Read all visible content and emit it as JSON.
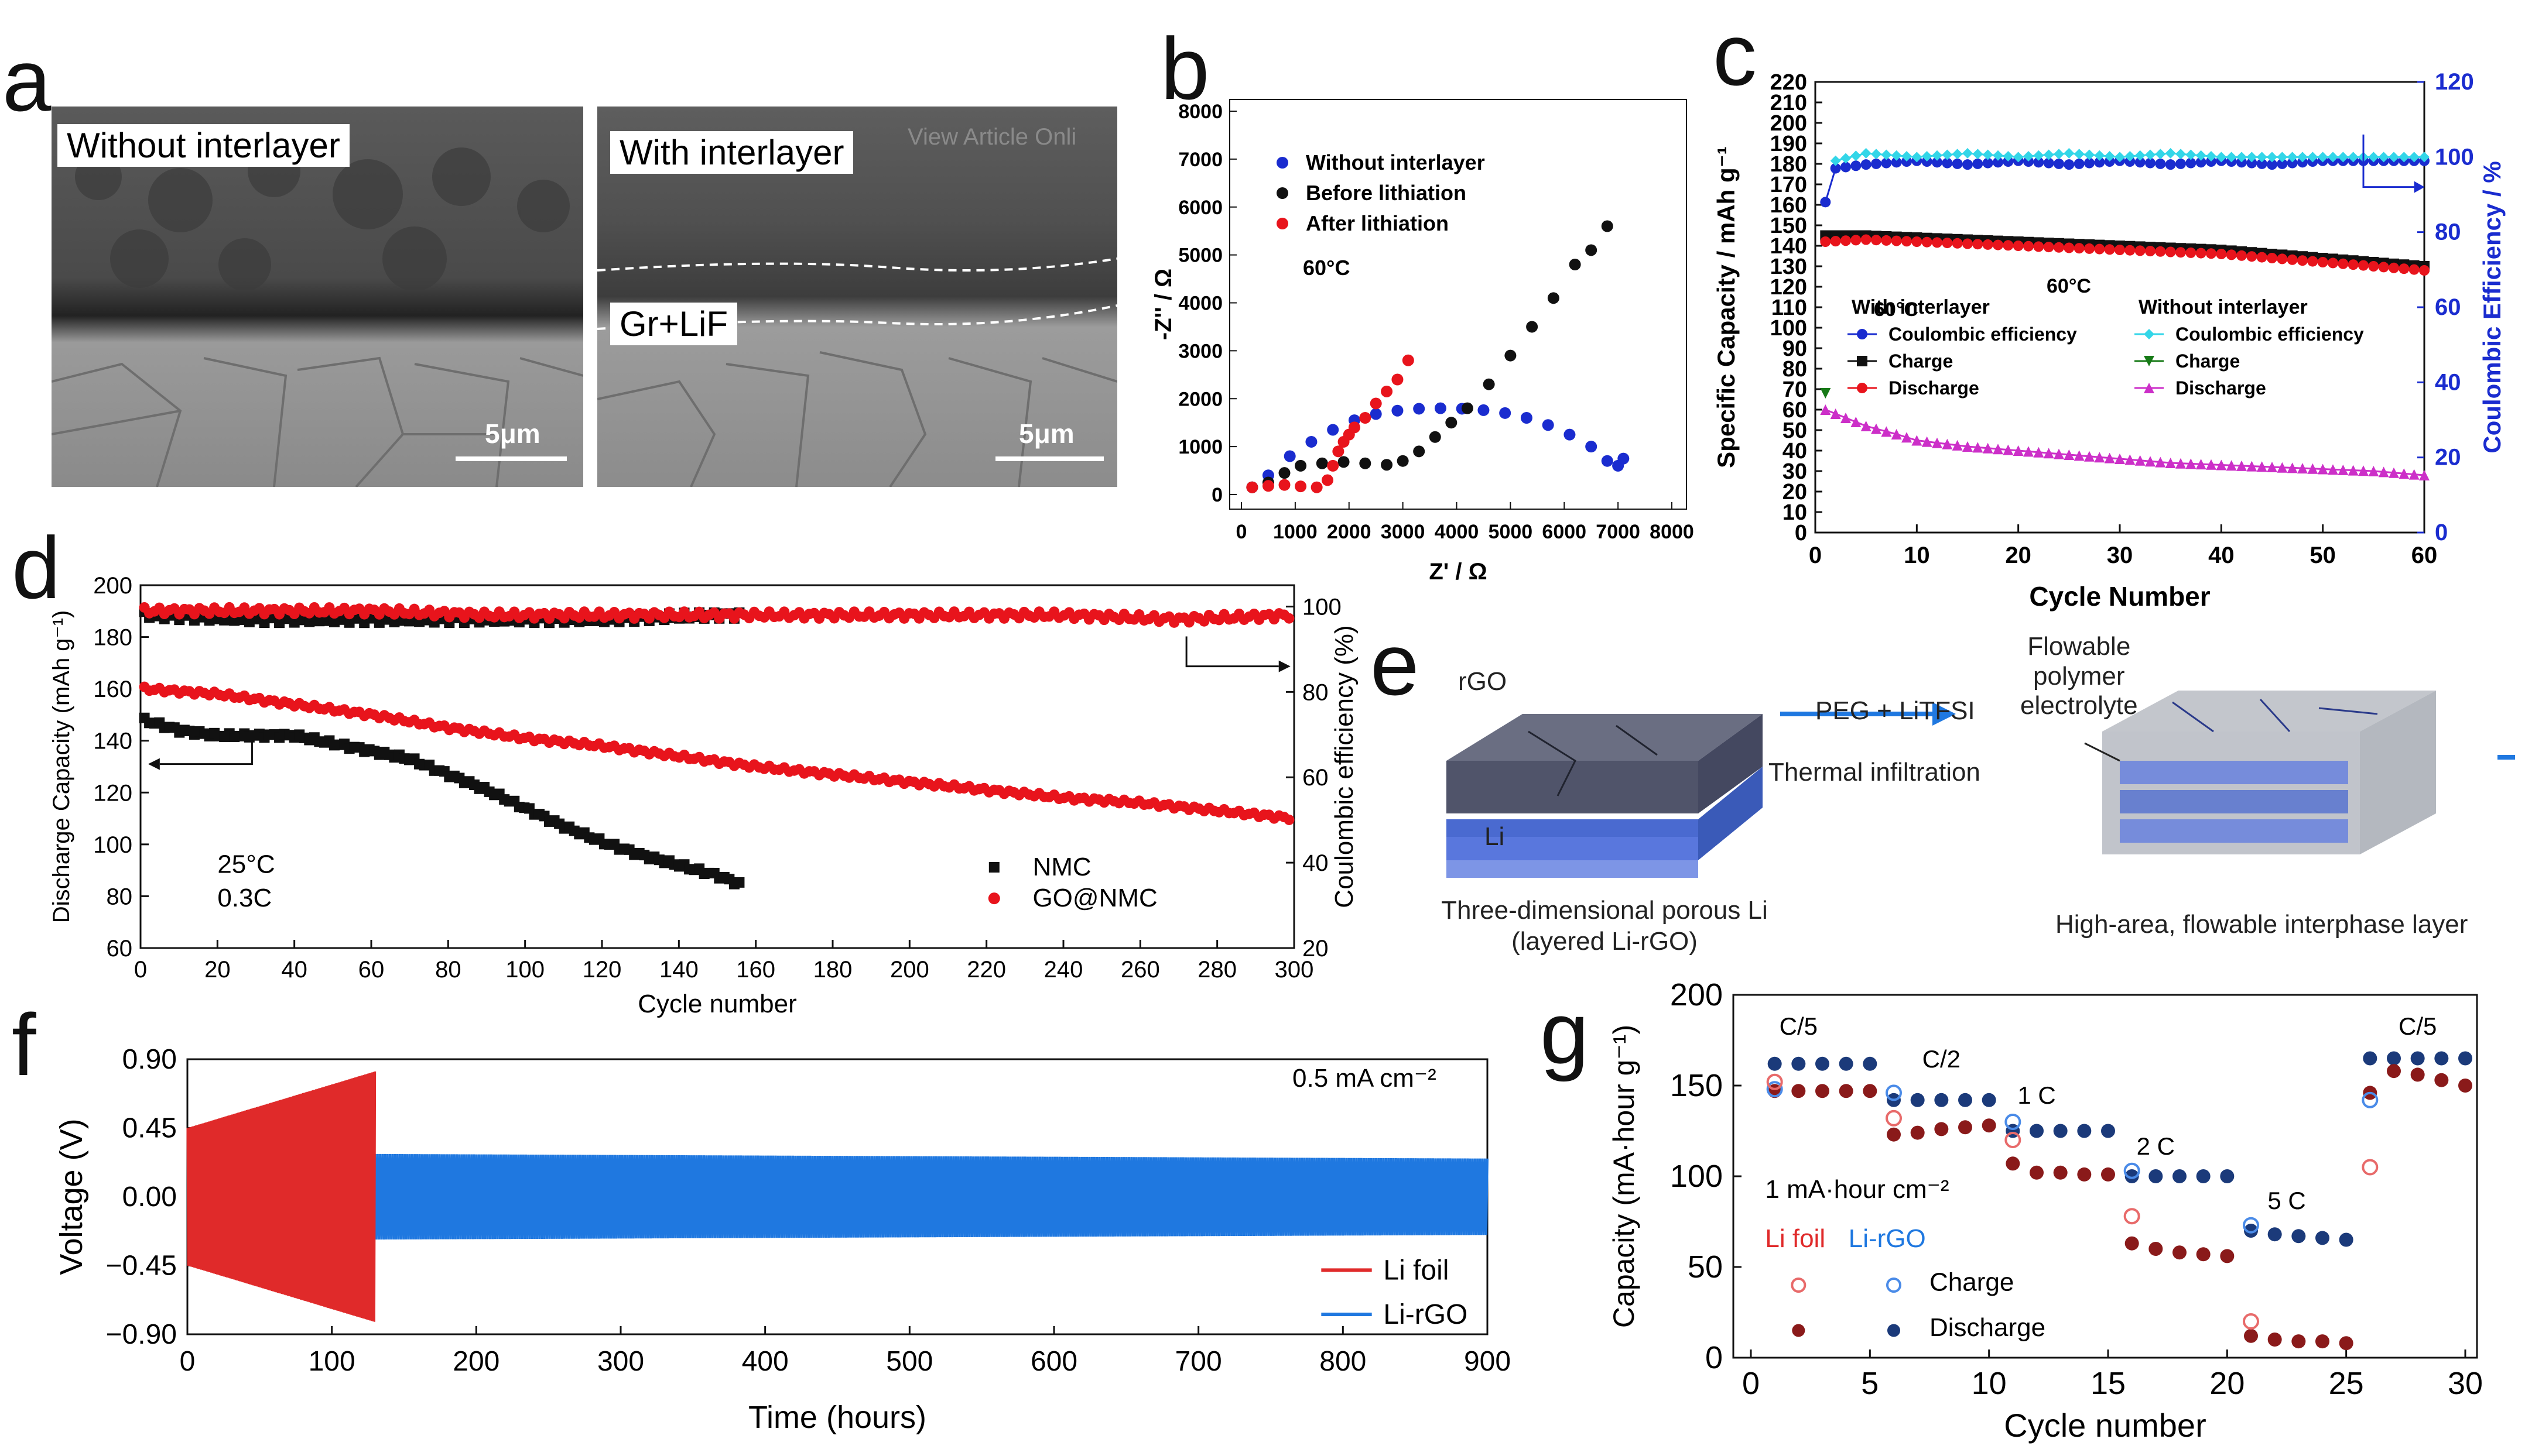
{
  "panels": {
    "a": {
      "letter": "a",
      "left_label": "Without interlayer",
      "right_label": "With interlayer",
      "layer_label": "Gr+LiF",
      "scale_left": "5μm",
      "scale_right": "5μm",
      "watermark": "View Article Onli"
    },
    "b": {
      "letter": "b"
    },
    "c": {
      "letter": "c"
    },
    "d": {
      "letter": "d"
    },
    "e": {
      "letter": "e",
      "rgo_label": "rGO",
      "li_label": "Li",
      "arrow_top": "PEG + LiTFSI",
      "arrow_bottom": "Thermal infiltration",
      "flowable_label": [
        "Flowable",
        "polymer",
        "electrolyte"
      ],
      "caption_left": [
        "Three-dimensional porous Li",
        "(layered Li-rGO)"
      ],
      "caption_right": "High-area, flowable interphase layer"
    },
    "f": {
      "letter": "f"
    },
    "g": {
      "letter": "g"
    }
  },
  "colors": {
    "black": "#111111",
    "red": "#e8141c",
    "blue": "#1a2ccf",
    "cyan": "#33d6e8",
    "green": "#177a17",
    "magenta": "#cc2fc8",
    "li_red": "#e02a2a",
    "li_blue": "#1f78e0",
    "navy": "#1b3a7a",
    "darkred": "#8a1a1a",
    "open_blue": "#4a8be8",
    "open_red": "#e86a6a"
  },
  "chart_data": [
    {
      "id": "b",
      "type": "scatter",
      "xlabel": "Z' / Ω",
      "ylabel": "-Z'' / Ω",
      "xlim": [
        0,
        8000
      ],
      "ylim": [
        0,
        8000
      ],
      "xticks": [
        0,
        1000,
        2000,
        3000,
        4000,
        5000,
        6000,
        7000,
        8000
      ],
      "yticks": [
        0,
        1000,
        2000,
        3000,
        4000,
        5000,
        6000,
        7000,
        8000
      ],
      "annotation": "60°C",
      "series": [
        {
          "name": "Without interlayer",
          "color": "#1a2ccf",
          "x": [
            200,
            500,
            900,
            1300,
            1700,
            2100,
            2500,
            2900,
            3300,
            3700,
            4100,
            4500,
            4900,
            5300,
            5700,
            6100,
            6500,
            6800,
            7000,
            7100
          ],
          "y": [
            150,
            400,
            800,
            1100,
            1350,
            1550,
            1680,
            1750,
            1790,
            1800,
            1790,
            1760,
            1700,
            1600,
            1450,
            1250,
            1000,
            700,
            600,
            750
          ]
        },
        {
          "name": "Before lithiation",
          "color": "#111111",
          "x": [
            200,
            500,
            800,
            1100,
            1500,
            1900,
            2300,
            2700,
            3000,
            3300,
            3600,
            3900,
            4200,
            4600,
            5000,
            5400,
            5800,
            6200,
            6500,
            6800
          ],
          "y": [
            150,
            250,
            450,
            600,
            650,
            680,
            650,
            620,
            700,
            900,
            1200,
            1500,
            1800,
            2300,
            2900,
            3500,
            4100,
            4800,
            5100,
            5600
          ]
        },
        {
          "name": "After lithiation",
          "color": "#e8141c",
          "x": [
            200,
            500,
            800,
            1100,
            1400,
            1600,
            1700,
            1800,
            1900,
            2000,
            2100,
            2300,
            2500,
            2700,
            2900,
            3100
          ],
          "y": [
            150,
            180,
            200,
            170,
            150,
            300,
            600,
            900,
            1100,
            1250,
            1400,
            1600,
            1900,
            2150,
            2400,
            2800
          ]
        }
      ]
    },
    {
      "id": "c",
      "type": "line",
      "xlabel": "Cycle Number",
      "ylabel": "Specific Capacity / mAh g⁻¹",
      "y2label": "Coulombic Efficiency / %",
      "xlim": [
        0,
        60
      ],
      "ylim": [
        0,
        220
      ],
      "y2lim": [
        0,
        120
      ],
      "xticks": [
        0,
        10,
        20,
        30,
        40,
        50,
        60
      ],
      "yticks": [
        0,
        10,
        20,
        30,
        40,
        50,
        60,
        70,
        80,
        90,
        100,
        110,
        120,
        130,
        140,
        150,
        160,
        170,
        180,
        190,
        200,
        210,
        220
      ],
      "y2ticks": [
        0,
        20,
        40,
        60,
        80,
        100,
        120
      ],
      "annotation": "60°C",
      "legend_headers": [
        "With interlayer",
        "Without interlayer"
      ],
      "series": [
        {
          "name": "Coulombic efficiency",
          "group": "With interlayer",
          "axis": "right",
          "color": "#1a2ccf",
          "x": [
            1,
            2,
            5,
            10,
            15,
            20,
            25,
            30,
            35,
            40,
            45,
            50,
            55,
            60
          ],
          "y": [
            88,
            97,
            98,
            99,
            98,
            99,
            98,
            99,
            98,
            99,
            98,
            99,
            99,
            99
          ]
        },
        {
          "name": "Coulombic efficiency",
          "group": "Without interlayer",
          "axis": "right",
          "color": "#33d6e8",
          "x": [
            2,
            5,
            10,
            15,
            20,
            25,
            30,
            35,
            40,
            45,
            50,
            55,
            60
          ],
          "y": [
            99,
            101,
            100,
            101,
            100,
            101,
            100,
            101,
            100,
            100,
            100,
            100,
            100
          ]
        },
        {
          "name": "Charge",
          "group": "With interlayer",
          "axis": "left",
          "color": "#111111",
          "x": [
            1,
            5,
            10,
            15,
            20,
            25,
            30,
            35,
            40,
            45,
            50,
            55,
            60
          ],
          "y": [
            145,
            145,
            144,
            143,
            142,
            141,
            140,
            139,
            138,
            136,
            134,
            132,
            130
          ]
        },
        {
          "name": "Discharge",
          "group": "With interlayer",
          "axis": "left",
          "color": "#e8141c",
          "x": [
            1,
            5,
            10,
            15,
            20,
            25,
            30,
            35,
            40,
            45,
            50,
            55,
            60
          ],
          "y": [
            142,
            143,
            142,
            141,
            140,
            139,
            138,
            137,
            136,
            134,
            132,
            130,
            128
          ]
        },
        {
          "name": "Charge",
          "group": "Without interlayer",
          "axis": "left",
          "color": "#177a17",
          "x": [
            1
          ],
          "y": [
            68
          ]
        },
        {
          "name": "Discharge",
          "group": "Without interlayer",
          "axis": "left",
          "color": "#cc2fc8",
          "x": [
            1,
            3,
            5,
            8,
            10,
            15,
            20,
            25,
            30,
            35,
            40,
            45,
            50,
            55,
            60
          ],
          "y": [
            60,
            56,
            52,
            48,
            45,
            42,
            40,
            38,
            36,
            34,
            33,
            32,
            31,
            30,
            28
          ]
        }
      ]
    },
    {
      "id": "d",
      "type": "scatter",
      "xlabel": "Cycle number",
      "ylabel": "Discharge Capacity (mAh g⁻¹)",
      "y2label": "Coulombic efficiency (%)",
      "xlim": [
        0,
        300
      ],
      "ylim": [
        60,
        200
      ],
      "y2lim": [
        20,
        105
      ],
      "xticks": [
        0,
        20,
        40,
        60,
        80,
        100,
        120,
        140,
        160,
        180,
        200,
        220,
        240,
        260,
        280,
        300
      ],
      "yticks": [
        60,
        80,
        100,
        120,
        140,
        160,
        180,
        200
      ],
      "y2ticks": [
        20,
        40,
        60,
        80,
        100
      ],
      "annotations": [
        "25°C",
        "0.3C"
      ],
      "series": [
        {
          "name": "NMC",
          "color": "#111111",
          "marker": "square",
          "x": [
            1,
            10,
            20,
            30,
            40,
            50,
            60,
            70,
            80,
            90,
            100,
            110,
            120,
            130,
            140,
            150,
            157
          ],
          "y": [
            148,
            144,
            142,
            142,
            142,
            139,
            136,
            133,
            127,
            121,
            114,
            107,
            101,
            96,
            92,
            88,
            84
          ]
        },
        {
          "name": "GO@NMC",
          "color": "#e8141c",
          "marker": "circle",
          "x": [
            1,
            20,
            40,
            60,
            80,
            100,
            120,
            140,
            160,
            180,
            200,
            220,
            240,
            260,
            280,
            300
          ],
          "y": [
            160,
            158,
            154,
            150,
            145,
            141,
            138,
            134,
            130,
            127,
            124,
            121,
            118,
            116,
            113,
            110
          ]
        },
        {
          "name": "NMC CE",
          "color": "#111111",
          "axis": "right",
          "marker": "square",
          "x": [
            1,
            30,
            60,
            90,
            120,
            150,
            157
          ],
          "y": [
            98,
            97,
            97,
            97,
            97,
            98,
            98
          ]
        },
        {
          "name": "GO@NMC CE",
          "color": "#e8141c",
          "axis": "right",
          "marker": "circle",
          "x": [
            1,
            30,
            60,
            90,
            120,
            150,
            180,
            210,
            240,
            270,
            300
          ],
          "y": [
            99,
            99,
            99,
            98,
            98,
            98,
            98,
            98,
            98,
            97,
            98
          ]
        }
      ]
    },
    {
      "id": "f",
      "type": "line",
      "xlabel": "Time (hours)",
      "ylabel": "Voltage (V)",
      "xlim": [
        0,
        900
      ],
      "ylim": [
        -0.9,
        0.9
      ],
      "xticks": [
        0,
        100,
        200,
        300,
        400,
        500,
        600,
        700,
        800,
        900
      ],
      "yticks": [
        -0.9,
        -0.45,
        0.0,
        0.45,
        0.9
      ],
      "ytick_labels": [
        "−0.90",
        "−0.45",
        "0.00",
        "0.45",
        "0.90"
      ],
      "annotation": "0.5 mA cm⁻²",
      "series": [
        {
          "name": "Li foil",
          "color": "#e02a2a",
          "x": [
            0,
            130
          ],
          "amplitude": [
            0.45,
            0.82
          ]
        },
        {
          "name": "Li-rGO",
          "color": "#1f78e0",
          "x": [
            130,
            900
          ],
          "amplitude": [
            0.28,
            0.25
          ]
        }
      ]
    },
    {
      "id": "g",
      "type": "scatter",
      "xlabel": "Cycle number",
      "ylabel": "Capacity (mA·hour g⁻¹)",
      "xlim": [
        0,
        30
      ],
      "ylim": [
        0,
        200
      ],
      "xticks": [
        0,
        5,
        10,
        15,
        20,
        25,
        30
      ],
      "yticks": [
        0,
        50,
        100,
        150,
        200
      ],
      "rate_labels": [
        "C/5",
        "C/2",
        "1 C",
        "2 C",
        "5 C",
        "C/5"
      ],
      "areal_label": "1 mA·hour cm⁻²",
      "legend": {
        "charge": "Charge",
        "discharge": "Discharge",
        "li_foil": "Li foil",
        "li_rgo": "Li-rGO"
      },
      "series": [
        {
          "name": "Li-rGO Discharge",
          "color": "#1b3a7a",
          "x": [
            1,
            2,
            3,
            4,
            5,
            6,
            7,
            8,
            9,
            10,
            11,
            12,
            13,
            14,
            15,
            16,
            17,
            18,
            19,
            20,
            21,
            22,
            23,
            24,
            25,
            26,
            27,
            28,
            29,
            30
          ],
          "y": [
            162,
            162,
            162,
            162,
            162,
            142,
            142,
            142,
            142,
            142,
            125,
            125,
            125,
            125,
            125,
            100,
            100,
            100,
            100,
            100,
            70,
            68,
            67,
            66,
            65,
            165,
            165,
            165,
            165,
            165
          ]
        },
        {
          "name": "Li foil Discharge",
          "color": "#8a1a1a",
          "x": [
            1,
            2,
            3,
            4,
            5,
            6,
            7,
            8,
            9,
            10,
            11,
            12,
            13,
            14,
            15,
            16,
            17,
            18,
            19,
            20,
            21,
            22,
            23,
            24,
            25,
            26,
            27,
            28,
            29,
            30
          ],
          "y": [
            147,
            147,
            147,
            147,
            147,
            123,
            124,
            126,
            127,
            128,
            107,
            102,
            102,
            101,
            101,
            63,
            60,
            58,
            57,
            56,
            12,
            10,
            9,
            9,
            8,
            146,
            158,
            156,
            153,
            150
          ]
        },
        {
          "name": "Li-rGO Charge (open)",
          "color": "#4a8be8",
          "x": [
            1,
            6,
            11,
            16,
            21,
            26
          ],
          "y": [
            148,
            146,
            130,
            103,
            73,
            142
          ]
        },
        {
          "name": "Li foil Charge (open)",
          "color": "#e86a6a",
          "x": [
            1,
            6,
            11,
            16,
            21,
            26
          ],
          "y": [
            152,
            132,
            120,
            78,
            20,
            105
          ]
        }
      ]
    }
  ]
}
